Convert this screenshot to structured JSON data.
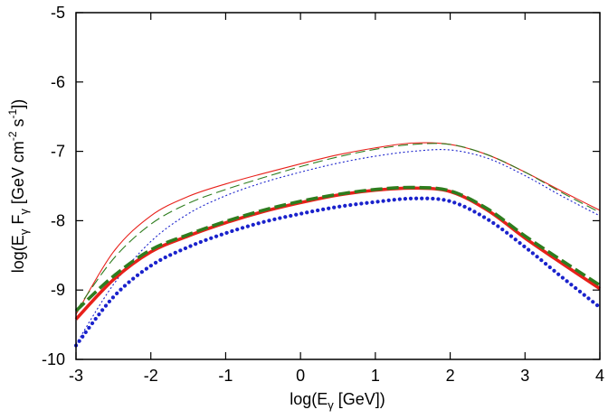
{
  "chart_data": {
    "type": "line",
    "title": "",
    "xlabel": {
      "prefix": "log(E",
      "sub": "γ",
      "suffix": " [GeV])"
    },
    "ylabel": {
      "p1": "log(E",
      "s1": "γ",
      "p2": " F",
      "s2": "γ",
      "p3": " [GeV cm",
      "e1": "-2",
      "p4": " s",
      "e2": "-1",
      "p5": "])"
    },
    "xlim": [
      -3,
      4
    ],
    "ylim": [
      -10,
      -5
    ],
    "xticks": [
      -3,
      -2,
      -1,
      0,
      1,
      2,
      3,
      4
    ],
    "yticks": [
      -10,
      -9,
      -8,
      -7,
      -6,
      -5
    ],
    "x": [
      -3,
      -2.5,
      -2,
      -1.5,
      -1,
      -0.5,
      0,
      0.5,
      1,
      1.5,
      2,
      2.5,
      3,
      3.5,
      4
    ],
    "series": [
      {
        "name": "thin red solid",
        "color": "#e8201a",
        "style": "solid",
        "weight": "thin",
        "values": [
          -9.35,
          -8.45,
          -7.93,
          -7.65,
          -7.47,
          -7.32,
          -7.18,
          -7.05,
          -6.95,
          -6.88,
          -6.9,
          -7.05,
          -7.3,
          -7.58,
          -7.85
        ]
      },
      {
        "name": "thin green dashed",
        "color": "#2e7d1e",
        "style": "dashed",
        "weight": "thin",
        "values": [
          -9.3,
          -8.55,
          -8.05,
          -7.75,
          -7.55,
          -7.38,
          -7.22,
          -7.08,
          -6.97,
          -6.9,
          -6.9,
          -7.05,
          -7.3,
          -7.6,
          -7.88
        ]
      },
      {
        "name": "thin blue dotted",
        "color": "#1a22cc",
        "style": "dotted",
        "weight": "thin",
        "values": [
          -9.78,
          -8.92,
          -8.3,
          -7.9,
          -7.64,
          -7.45,
          -7.3,
          -7.17,
          -7.07,
          -7.0,
          -6.98,
          -7.1,
          -7.35,
          -7.65,
          -7.93
        ]
      },
      {
        "name": "thick red solid",
        "color": "#e8201a",
        "style": "solid",
        "weight": "thick",
        "values": [
          -9.42,
          -8.85,
          -8.45,
          -8.22,
          -8.03,
          -7.87,
          -7.74,
          -7.63,
          -7.56,
          -7.53,
          -7.58,
          -7.85,
          -8.25,
          -8.62,
          -8.98
        ]
      },
      {
        "name": "thick green dashed",
        "color": "#2e7d1e",
        "style": "dashed",
        "weight": "thick",
        "values": [
          -9.3,
          -8.8,
          -8.42,
          -8.2,
          -8.01,
          -7.85,
          -7.72,
          -7.62,
          -7.55,
          -7.52,
          -7.57,
          -7.83,
          -8.22,
          -8.58,
          -8.93
        ]
      },
      {
        "name": "thick blue dotted",
        "color": "#1a22cc",
        "style": "dotted",
        "weight": "thick",
        "values": [
          -9.8,
          -9.1,
          -8.65,
          -8.38,
          -8.18,
          -8.02,
          -7.9,
          -7.8,
          -7.73,
          -7.68,
          -7.72,
          -7.98,
          -8.38,
          -8.82,
          -9.25
        ]
      }
    ]
  }
}
